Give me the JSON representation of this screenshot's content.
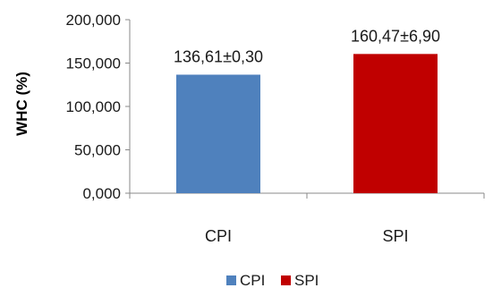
{
  "chart_data": {
    "type": "bar",
    "title": "",
    "xlabel": "",
    "ylabel": "WHC (%)",
    "ylim": [
      0,
      200
    ],
    "yticks": [
      0,
      50,
      100,
      150,
      200
    ],
    "ytick_labels": [
      "0,000",
      "50,000",
      "100,000",
      "150,000",
      "200,000"
    ],
    "grid": false,
    "legend_position": "bottom",
    "categories": [
      "CPI",
      "SPI"
    ],
    "values": [
      136.61,
      160.47
    ],
    "data_labels": [
      "136,61±0,30",
      "160,47±6,90"
    ],
    "colors": [
      "#4f81bd",
      "#c00000"
    ],
    "legend": [
      {
        "name": "CPI",
        "color": "#4f81bd"
      },
      {
        "name": "SPI",
        "color": "#c00000"
      }
    ]
  }
}
